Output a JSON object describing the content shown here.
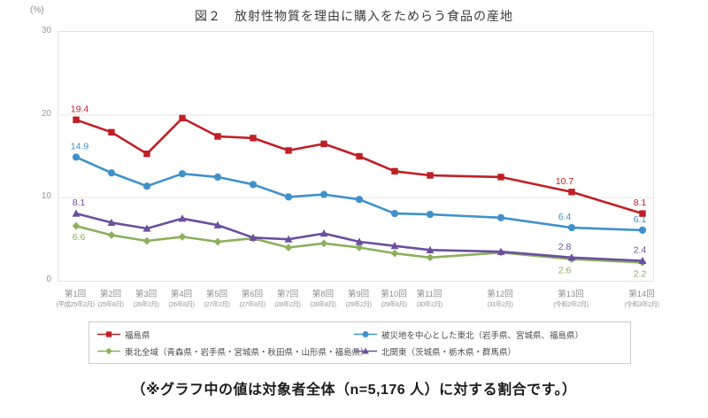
{
  "chart_data": {
    "type": "line",
    "title": "図２　放射性物質を理由に購入をためらう食品の産地",
    "y_unit_label": "(%)",
    "footnote": "（※グラフ中の値は対象者全体（n=5,176 人）に対する割合です。）",
    "ylim": [
      0,
      30
    ],
    "y_ticks": [
      0,
      10,
      20,
      30
    ],
    "grid": "horizontal",
    "legend": {
      "position": "bottom",
      "columns": 2,
      "order": [
        0,
        1,
        2,
        3
      ]
    },
    "categories": [
      {
        "label": "第1回",
        "sublabel": "(平成25年2月)",
        "month": 0
      },
      {
        "label": "第2回",
        "sublabel": "(25年8月)",
        "month": 6
      },
      {
        "label": "第3回",
        "sublabel": "(26年2月)",
        "month": 12
      },
      {
        "label": "第4回",
        "sublabel": "(26年8月)",
        "month": 18
      },
      {
        "label": "第5回",
        "sublabel": "(27年2月)",
        "month": 24
      },
      {
        "label": "第6回",
        "sublabel": "(27年8月)",
        "month": 30
      },
      {
        "label": "第7回",
        "sublabel": "(28年2月)",
        "month": 36
      },
      {
        "label": "第8回",
        "sublabel": "(28年8月)",
        "month": 42
      },
      {
        "label": "第9回",
        "sublabel": "(29年2月)",
        "month": 48
      },
      {
        "label": "第10回",
        "sublabel": "(29年8月)",
        "month": 54
      },
      {
        "label": "第11回",
        "sublabel": "(30年2月)",
        "month": 60
      },
      {
        "label": "第12回",
        "sublabel": "(31年2月)",
        "month": 72
      },
      {
        "label": "第13回",
        "sublabel": "(令和2年2月)",
        "month": 84
      },
      {
        "label": "第14回",
        "sublabel": "(令和3年2月)",
        "month": 96
      }
    ],
    "series": [
      {
        "name": "福島県",
        "color": "#bf2026",
        "marker": "square",
        "label_side": "above",
        "values": [
          19.4,
          17.9,
          15.3,
          19.6,
          17.4,
          17.2,
          15.7,
          16.5,
          15.0,
          13.2,
          12.7,
          12.5,
          10.7,
          8.1
        ],
        "point_labels": [
          {
            "i": 0,
            "text": "19.4",
            "dx": 4
          },
          {
            "i": 12,
            "text": "10.7",
            "dx": -8
          },
          {
            "i": 13,
            "text": "8.1",
            "dx": -3
          }
        ]
      },
      {
        "name": "被災地を中心とした東北（岩手県、宮城県、福島県）",
        "color": "#4191c9",
        "marker": "circle",
        "label_side": "above",
        "values": [
          14.9,
          13.0,
          11.4,
          12.9,
          12.5,
          11.6,
          10.1,
          10.4,
          9.8,
          8.1,
          8.0,
          7.6,
          6.4,
          6.1
        ],
        "point_labels": [
          {
            "i": 0,
            "text": "14.9",
            "dx": 4
          },
          {
            "i": 12,
            "text": "6.4",
            "dx": -8
          },
          {
            "i": 13,
            "text": "6.1",
            "dx": -3
          }
        ]
      },
      {
        "name": "東北全域（青森県・岩手県・宮城県・秋田県・山形県・福島県）",
        "color": "#8bb05c",
        "marker": "diamond",
        "label_side": "below",
        "values": [
          6.6,
          5.5,
          4.8,
          5.3,
          4.7,
          5.1,
          4.0,
          4.5,
          4.0,
          3.3,
          2.8,
          3.4,
          2.6,
          2.2
        ],
        "point_labels": [
          {
            "i": 0,
            "text": "6.6",
            "dx": 3
          },
          {
            "i": 12,
            "text": "2.6",
            "dx": -8
          },
          {
            "i": 13,
            "text": "2.2",
            "dx": -3
          }
        ]
      },
      {
        "name": "北関東（茨城県・栃木県・群馬県）",
        "color": "#6b4f9e",
        "marker": "triangle",
        "label_side": "above",
        "values": [
          8.1,
          7.0,
          6.3,
          7.5,
          6.7,
          5.2,
          5.0,
          5.7,
          4.7,
          4.2,
          3.7,
          3.5,
          2.8,
          2.4
        ],
        "point_labels": [
          {
            "i": 0,
            "text": "8.1",
            "dx": 3
          },
          {
            "i": 12,
            "text": "2.8",
            "dx": -8
          },
          {
            "i": 13,
            "text": "2.4",
            "dx": -3
          }
        ]
      }
    ]
  }
}
